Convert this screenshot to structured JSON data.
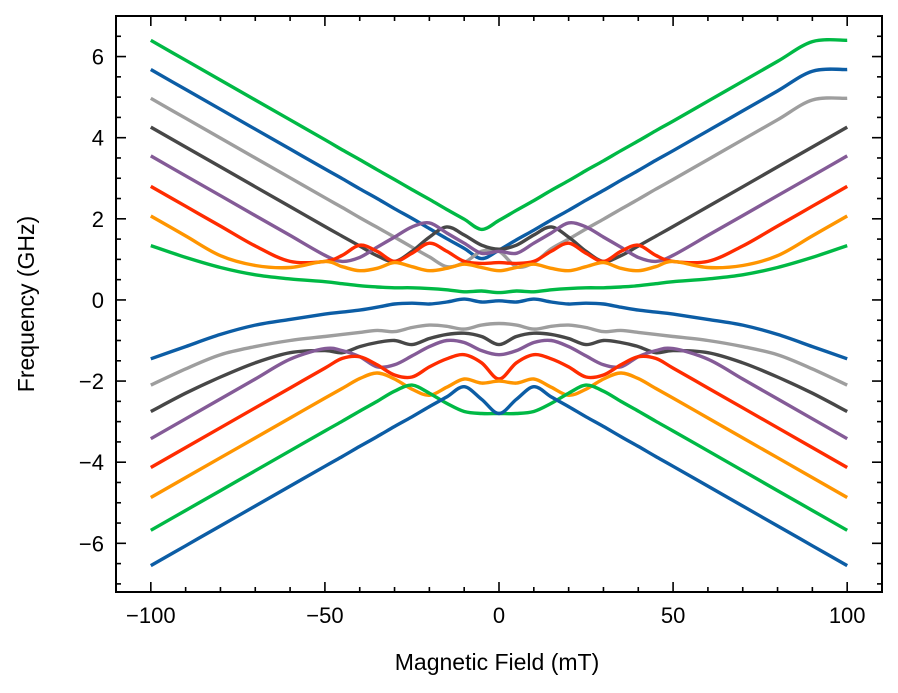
{
  "chart_data": {
    "type": "line",
    "title": "",
    "xlabel": "Magnetic Field (mT)",
    "ylabel": "Frequency (GHz)",
    "xlim": [
      -110,
      110
    ],
    "ylim": [
      -7.2,
      7.0
    ],
    "x_ticks": [
      -100,
      -50,
      0,
      50,
      100
    ],
    "x_tick_labels": [
      "−100",
      "−50",
      "0",
      "50",
      "100"
    ],
    "y_ticks": [
      -6,
      -4,
      -2,
      0,
      2,
      4,
      6
    ],
    "y_tick_labels": [
      "−6",
      "−4",
      "−2",
      "0",
      "2",
      "4",
      "6"
    ],
    "grid": false,
    "legend": "none",
    "x": [
      -100,
      -90,
      -80,
      -70,
      -60,
      -50,
      -45,
      -40,
      -35,
      -30,
      -25,
      -20,
      -15,
      -10,
      -5,
      0,
      5,
      10,
      15,
      20,
      25,
      30,
      35,
      40,
      45,
      50,
      60,
      70,
      80,
      90,
      100
    ],
    "series": [
      {
        "color": "#00b945",
        "values": [
          6.4,
          5.91,
          5.42,
          4.93,
          4.44,
          3.95,
          3.7,
          3.46,
          3.21,
          2.97,
          2.72,
          2.48,
          2.23,
          1.99,
          1.74,
          1.96,
          2.21,
          2.45,
          2.7,
          2.94,
          3.19,
          3.43,
          3.68,
          3.92,
          4.17,
          4.41,
          4.9,
          5.39,
          5.88,
          6.37,
          6.4
        ]
      },
      {
        "color": "#0c5da5",
        "values": [
          5.68,
          5.19,
          4.7,
          4.21,
          3.72,
          3.23,
          2.99,
          2.74,
          2.5,
          2.25,
          2.01,
          1.76,
          1.51,
          1.27,
          1.02,
          1.23,
          1.48,
          1.72,
          1.97,
          2.21,
          2.46,
          2.7,
          2.95,
          3.19,
          3.44,
          3.68,
          4.17,
          4.66,
          5.15,
          5.64,
          5.68
        ]
      },
      {
        "color": "#9e9e9e",
        "values": [
          4.97,
          4.48,
          3.99,
          3.5,
          3.01,
          2.52,
          2.28,
          2.03,
          1.79,
          1.55,
          1.3,
          1.06,
          0.82,
          0.92,
          1.2,
          1.2,
          0.82,
          0.92,
          1.26,
          1.5,
          1.75,
          1.99,
          2.24,
          2.48,
          2.73,
          2.97,
          3.46,
          3.95,
          4.44,
          4.93,
          4.97
        ]
      },
      {
        "color": "#474747",
        "values": [
          4.26,
          3.77,
          3.28,
          2.79,
          2.3,
          1.81,
          1.57,
          1.33,
          1.09,
          0.95,
          1.2,
          1.55,
          1.8,
          1.6,
          1.35,
          1.25,
          1.35,
          1.6,
          1.8,
          1.55,
          1.2,
          0.95,
          1.09,
          1.33,
          1.57,
          1.81,
          2.3,
          2.79,
          3.28,
          3.77,
          4.26
        ]
      },
      {
        "color": "#845b97",
        "values": [
          3.55,
          3.06,
          2.57,
          2.08,
          1.59,
          1.1,
          0.95,
          1.05,
          1.3,
          1.55,
          1.8,
          1.9,
          1.65,
          1.4,
          1.15,
          1.2,
          1.15,
          1.4,
          1.65,
          1.9,
          1.8,
          1.55,
          1.3,
          1.05,
          0.95,
          1.1,
          1.59,
          2.08,
          2.57,
          3.06,
          3.55
        ]
      },
      {
        "color": "#ff2c00",
        "values": [
          2.8,
          2.31,
          1.82,
          1.33,
          0.95,
          0.95,
          1.1,
          1.35,
          1.2,
          0.95,
          1.15,
          1.4,
          1.2,
          0.95,
          0.9,
          0.92,
          0.9,
          0.95,
          1.2,
          1.4,
          1.15,
          0.95,
          1.2,
          1.35,
          1.1,
          0.95,
          0.95,
          1.33,
          1.82,
          2.31,
          2.8
        ]
      },
      {
        "color": "#ff9500",
        "values": [
          2.07,
          1.58,
          1.09,
          0.85,
          0.8,
          0.95,
          0.82,
          0.72,
          0.78,
          0.92,
          0.82,
          0.72,
          0.78,
          0.88,
          0.8,
          0.72,
          0.8,
          0.88,
          0.78,
          0.72,
          0.82,
          0.92,
          0.78,
          0.72,
          0.82,
          0.95,
          0.8,
          0.85,
          1.09,
          1.58,
          2.07
        ]
      },
      {
        "color": "#00b945",
        "values": [
          1.34,
          1.05,
          0.8,
          0.62,
          0.52,
          0.45,
          0.4,
          0.35,
          0.32,
          0.3,
          0.3,
          0.28,
          0.25,
          0.2,
          0.22,
          0.18,
          0.22,
          0.2,
          0.25,
          0.28,
          0.3,
          0.3,
          0.32,
          0.35,
          0.4,
          0.45,
          0.52,
          0.62,
          0.8,
          1.05,
          1.34
        ]
      },
      {
        "color": "#0c5da5",
        "values": [
          -1.45,
          -1.15,
          -0.85,
          -0.62,
          -0.48,
          -0.35,
          -0.3,
          -0.25,
          -0.18,
          -0.1,
          -0.08,
          -0.1,
          -0.05,
          0.02,
          -0.05,
          -0.02,
          -0.05,
          0.02,
          -0.05,
          -0.1,
          -0.08,
          -0.1,
          -0.18,
          -0.25,
          -0.3,
          -0.35,
          -0.48,
          -0.62,
          -0.85,
          -1.15,
          -1.45
        ]
      },
      {
        "color": "#9e9e9e",
        "values": [
          -2.1,
          -1.7,
          -1.35,
          -1.15,
          -1.0,
          -0.9,
          -0.85,
          -0.8,
          -0.75,
          -0.78,
          -0.68,
          -0.62,
          -0.65,
          -0.72,
          -0.62,
          -0.58,
          -0.62,
          -0.72,
          -0.65,
          -0.62,
          -0.68,
          -0.78,
          -0.75,
          -0.8,
          -0.85,
          -0.9,
          -1.0,
          -1.15,
          -1.35,
          -1.7,
          -2.1
        ]
      },
      {
        "color": "#474747",
        "values": [
          -2.75,
          -2.3,
          -1.9,
          -1.55,
          -1.3,
          -1.25,
          -1.3,
          -1.15,
          -1.05,
          -1.0,
          -1.1,
          -0.95,
          -0.85,
          -0.82,
          -0.9,
          -1.1,
          -0.9,
          -0.82,
          -0.85,
          -0.95,
          -1.1,
          -1.0,
          -1.05,
          -1.15,
          -1.3,
          -1.25,
          -1.3,
          -1.55,
          -1.9,
          -2.3,
          -2.75
        ]
      },
      {
        "color": "#845b97",
        "values": [
          -3.42,
          -2.93,
          -2.44,
          -1.95,
          -1.46,
          -1.2,
          -1.25,
          -1.4,
          -1.65,
          -1.6,
          -1.38,
          -1.15,
          -1.0,
          -1.05,
          -1.25,
          -1.35,
          -1.25,
          -1.05,
          -1.0,
          -1.15,
          -1.38,
          -1.6,
          -1.65,
          -1.4,
          -1.25,
          -1.2,
          -1.46,
          -1.95,
          -2.44,
          -2.93,
          -3.42
        ]
      },
      {
        "color": "#ff2c00",
        "values": [
          -4.13,
          -3.64,
          -3.15,
          -2.66,
          -2.17,
          -1.68,
          -1.44,
          -1.4,
          -1.6,
          -1.85,
          -1.9,
          -1.65,
          -1.45,
          -1.35,
          -1.55,
          -1.95,
          -1.55,
          -1.35,
          -1.45,
          -1.65,
          -1.9,
          -1.85,
          -1.6,
          -1.4,
          -1.44,
          -1.68,
          -2.17,
          -2.66,
          -3.15,
          -3.64,
          -4.13
        ]
      },
      {
        "color": "#ff9500",
        "values": [
          -4.87,
          -4.38,
          -3.89,
          -3.4,
          -2.91,
          -2.42,
          -2.18,
          -1.94,
          -1.8,
          -1.95,
          -2.2,
          -2.35,
          -2.15,
          -1.95,
          -2.05,
          -2.0,
          -2.05,
          -1.95,
          -2.15,
          -2.35,
          -2.2,
          -1.95,
          -1.8,
          -1.94,
          -2.18,
          -2.42,
          -2.91,
          -3.4,
          -3.89,
          -4.38,
          -4.87
        ]
      },
      {
        "color": "#00b945",
        "values": [
          -5.68,
          -5.19,
          -4.7,
          -4.21,
          -3.72,
          -3.23,
          -2.99,
          -2.74,
          -2.5,
          -2.25,
          -2.1,
          -2.3,
          -2.55,
          -2.75,
          -2.8,
          -2.8,
          -2.8,
          -2.75,
          -2.55,
          -2.3,
          -2.1,
          -2.25,
          -2.5,
          -2.74,
          -2.99,
          -3.23,
          -3.72,
          -4.21,
          -4.7,
          -5.19,
          -5.68
        ]
      },
      {
        "color": "#0c5da5",
        "values": [
          -6.55,
          -6.06,
          -5.57,
          -5.08,
          -4.59,
          -4.1,
          -3.86,
          -3.61,
          -3.37,
          -3.12,
          -2.88,
          -2.63,
          -2.39,
          -2.14,
          -2.45,
          -2.8,
          -2.45,
          -2.14,
          -2.39,
          -2.63,
          -2.88,
          -3.12,
          -3.37,
          -3.61,
          -3.86,
          -4.1,
          -4.59,
          -5.08,
          -5.57,
          -6.06,
          -6.55
        ]
      }
    ]
  }
}
